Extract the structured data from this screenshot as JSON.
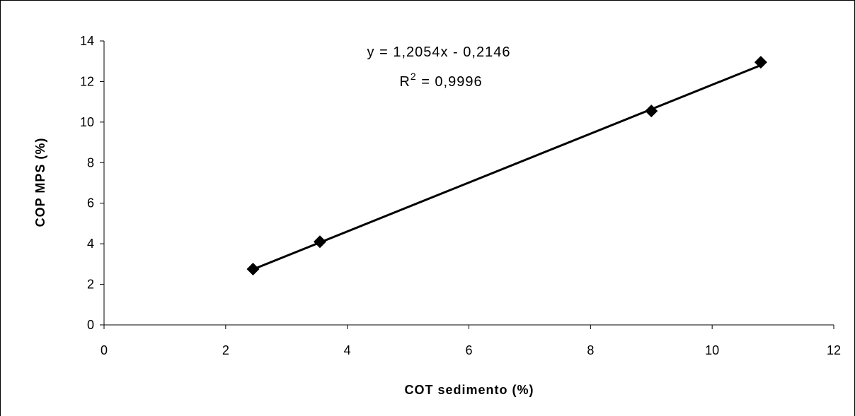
{
  "chart_data": {
    "type": "scatter",
    "title": "",
    "xlabel": "COT sedimento (%)",
    "ylabel": "COP MPS (%)",
    "xlim": [
      0,
      12
    ],
    "ylim": [
      0,
      14
    ],
    "x_ticks": [
      0,
      2,
      4,
      6,
      8,
      10,
      12
    ],
    "y_ticks": [
      0,
      2,
      4,
      6,
      8,
      10,
      12,
      14
    ],
    "grid": false,
    "legend": "none",
    "marker_color": "#000000",
    "trendline_color": "#000000",
    "series": [
      {
        "points": [
          {
            "x": 2.45,
            "y": 2.75
          },
          {
            "x": 3.55,
            "y": 4.1
          },
          {
            "x": 9.0,
            "y": 10.55
          },
          {
            "x": 10.8,
            "y": 12.95
          }
        ]
      }
    ],
    "trendline": {
      "slope": 1.2054,
      "intercept": -0.2146,
      "x_from": 2.45,
      "x_to": 10.8,
      "equation_text": "y = 1,2054x - 0,2146",
      "r2_prefix": "R",
      "r2_exponent": "2",
      "r2_value_text": " = 0,9996"
    }
  }
}
